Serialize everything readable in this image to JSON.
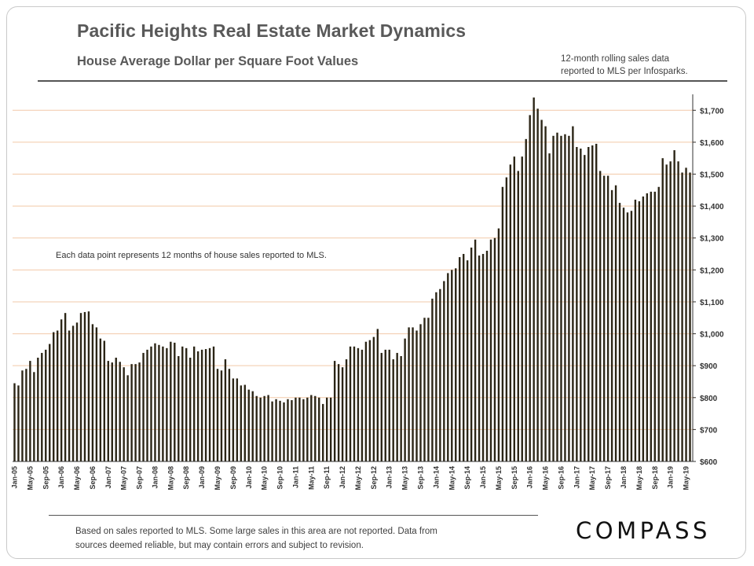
{
  "header": {
    "title": "Pacific Heights Real Estate Market Dynamics",
    "subtitle": "House Average Dollar per Square Foot Values",
    "note_line1": "12-month rolling sales data",
    "note_line2": "reported to MLS per Infosparks."
  },
  "footer": {
    "line1": "Based on sales reported to MLS. Some large sales in this area are not reported. Data from",
    "line2": "sources deemed reliable, but may contain errors and subject to revision.",
    "logo": "COMPASS"
  },
  "colors": {
    "bar": "#2b2516",
    "grid": "#f2c9a8",
    "axis": "#333333"
  },
  "chart_data": {
    "type": "bar",
    "title": "House Average Dollar per Square Foot Values",
    "annotation": "Each data point represents 12 months of house sales reported to MLS.",
    "ylim": [
      600,
      1750
    ],
    "y_ticks": [
      600,
      700,
      800,
      900,
      1000,
      1100,
      1200,
      1300,
      1400,
      1500,
      1600,
      1700
    ],
    "y_tick_labels": [
      "$600",
      "$700",
      "$800",
      "$900",
      "$1,000",
      "$1,100",
      "$1,200",
      "$1,300",
      "$1,400",
      "$1,500",
      "$1,600",
      "$1,700"
    ],
    "start": "Jan-05",
    "x_tick_labels": [
      "Jan-05",
      "May-05",
      "Sep-05",
      "Jan-06",
      "May-06",
      "Sep-06",
      "Jan-07",
      "May-07",
      "Sep-07",
      "Jan-08",
      "May-08",
      "Sep-08",
      "Jan-09",
      "May-09",
      "Sep-09",
      "Jan-10",
      "May-10",
      "Sep-10",
      "Jan-11",
      "May-11",
      "Sep-11",
      "Jan-12",
      "May-12",
      "Sep-12",
      "Jan-13",
      "May-13",
      "Sep-13",
      "Jan-14",
      "May-14",
      "Sep-14",
      "Jan-15",
      "May-15",
      "Sep-15",
      "Jan-16",
      "May-16",
      "Sep-16",
      "Jan-17",
      "May-17",
      "Sep-17",
      "Jan-18",
      "May-18",
      "Sep-18",
      "Jan-19",
      "May-19"
    ],
    "values": [
      845,
      838,
      885,
      890,
      915,
      880,
      925,
      940,
      950,
      968,
      1005,
      1010,
      1045,
      1065,
      1010,
      1025,
      1035,
      1065,
      1068,
      1070,
      1030,
      1020,
      985,
      978,
      915,
      910,
      925,
      912,
      895,
      870,
      905,
      905,
      910,
      940,
      950,
      960,
      970,
      965,
      960,
      955,
      975,
      972,
      930,
      960,
      955,
      925,
      960,
      945,
      950,
      952,
      955,
      960,
      890,
      885,
      920,
      890,
      860,
      860,
      838,
      840,
      825,
      820,
      805,
      800,
      805,
      808,
      788,
      795,
      790,
      785,
      795,
      792,
      800,
      800,
      795,
      800,
      808,
      805,
      800,
      780,
      800,
      800,
      915,
      905,
      895,
      920,
      960,
      960,
      955,
      950,
      975,
      980,
      990,
      1015,
      940,
      950,
      950,
      920,
      940,
      930,
      985,
      1020,
      1020,
      1010,
      1030,
      1050,
      1050,
      1110,
      1130,
      1140,
      1165,
      1190,
      1200,
      1205,
      1240,
      1250,
      1230,
      1270,
      1295,
      1245,
      1250,
      1260,
      1295,
      1300,
      1330,
      1460,
      1490,
      1530,
      1555,
      1510,
      1555,
      1610,
      1685,
      1740,
      1705,
      1670,
      1650,
      1565,
      1620,
      1630,
      1620,
      1625,
      1620,
      1650,
      1585,
      1580,
      1560,
      1585,
      1590,
      1595,
      1510,
      1495,
      1495,
      1450,
      1465,
      1410,
      1395,
      1380,
      1385,
      1420,
      1415,
      1430,
      1440,
      1445,
      1445,
      1460,
      1550,
      1530,
      1540,
      1575,
      1540,
      1505,
      1520,
      1505
    ]
  }
}
